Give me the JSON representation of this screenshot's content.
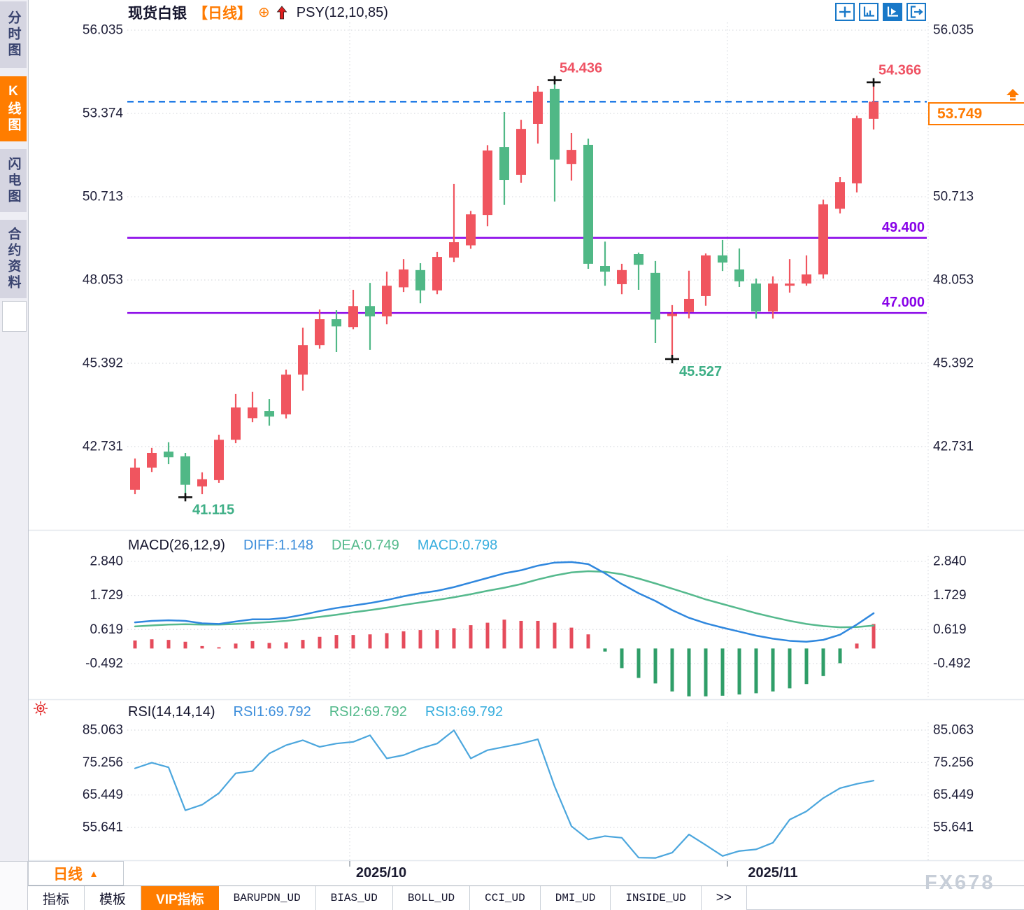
{
  "header": {
    "symbol": "现货白银",
    "timeframe": "【日线】",
    "plus_icon": "⊕",
    "indicator": "PSY(12,10,85)"
  },
  "sidebar": {
    "tabs": [
      {
        "label": "分时图",
        "active": false
      },
      {
        "label": "K线图",
        "active": true
      },
      {
        "label": "闪电图",
        "active": false
      },
      {
        "label": "合约资料",
        "active": false
      }
    ]
  },
  "colors": {
    "accent_orange": "#ff7d00",
    "candle_up": "#f0555f",
    "candle_down": "#50b886",
    "level_purple": "#8802e8",
    "dashed_blue": "#1474e4",
    "macd_diff": "#2f87de",
    "macd_dea": "#55b98d",
    "hist_up": "#e54b5b",
    "hist_down": "#2f9e68",
    "rsi_line": "#4ba6dd",
    "annotation_red": "#ef5263",
    "annotation_green": "#3eaf86",
    "axis_text": "#20203a",
    "grid": "#d8dadf",
    "marker_black": "#111111"
  },
  "price_badge": {
    "value": "53.749"
  },
  "chart_data": {
    "type": "candlestick",
    "instrument": "现货白银",
    "interval": "日线",
    "x_labels": [
      "2025/10",
      "2025/11"
    ],
    "y_ticks_main": [
      "56.035",
      "53.374",
      "50.713",
      "48.053",
      "45.392",
      "42.731"
    ],
    "last_price": 53.749,
    "candles_ohlc": [
      [
        41.35,
        42.35,
        41.21,
        42.06
      ],
      [
        42.06,
        42.69,
        41.92,
        42.53
      ],
      [
        42.57,
        42.87,
        42.17,
        42.39
      ],
      [
        42.42,
        42.53,
        41.115,
        41.51
      ],
      [
        41.46,
        41.91,
        41.21,
        41.69
      ],
      [
        41.66,
        43.11,
        41.57,
        42.95
      ],
      [
        42.95,
        44.41,
        42.84,
        43.98
      ],
      [
        43.64,
        44.48,
        43.51,
        43.98
      ],
      [
        43.87,
        44.25,
        43.4,
        43.69
      ],
      [
        43.76,
        45.19,
        43.63,
        45.03
      ],
      [
        45.03,
        46.53,
        44.52,
        45.97
      ],
      [
        45.97,
        47.11,
        45.86,
        46.8
      ],
      [
        46.8,
        47.09,
        45.75,
        46.57
      ],
      [
        46.55,
        47.74,
        46.48,
        47.22
      ],
      [
        47.22,
        47.96,
        45.82,
        46.89
      ],
      [
        46.89,
        48.32,
        46.64,
        47.87
      ],
      [
        47.82,
        48.72,
        47.67,
        48.39
      ],
      [
        48.37,
        48.59,
        47.31,
        47.72
      ],
      [
        47.72,
        48.95,
        47.6,
        48.79
      ],
      [
        48.77,
        51.12,
        48.63,
        49.26
      ],
      [
        49.16,
        50.26,
        49.05,
        50.15
      ],
      [
        50.13,
        52.36,
        49.77,
        52.19
      ],
      [
        52.3,
        53.42,
        50.45,
        51.25
      ],
      [
        51.41,
        53.17,
        51.16,
        52.88
      ],
      [
        53.04,
        54.25,
        52.41,
        54.07
      ],
      [
        54.16,
        54.436,
        50.56,
        51.9
      ],
      [
        51.76,
        52.75,
        51.23,
        52.21
      ],
      [
        52.37,
        52.57,
        48.41,
        48.57
      ],
      [
        48.5,
        49.28,
        47.87,
        48.32
      ],
      [
        47.92,
        48.57,
        47.6,
        48.37
      ],
      [
        48.88,
        48.93,
        47.74,
        48.54
      ],
      [
        48.28,
        48.66,
        46.04,
        46.79
      ],
      [
        46.9,
        47.25,
        45.527,
        46.98
      ],
      [
        47.03,
        48.35,
        46.83,
        47.45
      ],
      [
        47.54,
        48.9,
        47.23,
        48.84
      ],
      [
        48.84,
        49.33,
        48.34,
        48.61
      ],
      [
        48.39,
        49.06,
        47.83,
        48.01
      ],
      [
        47.94,
        48.1,
        46.82,
        47.05
      ],
      [
        47.05,
        48.17,
        46.82,
        47.94
      ],
      [
        47.87,
        48.72,
        47.65,
        47.94
      ],
      [
        47.94,
        48.84,
        47.87,
        48.23
      ],
      [
        48.23,
        50.62,
        48.1,
        50.47
      ],
      [
        50.33,
        51.34,
        50.18,
        51.18
      ],
      [
        51.14,
        53.3,
        50.85,
        53.22
      ],
      [
        53.2,
        54.366,
        52.86,
        53.749
      ]
    ],
    "annotations": {
      "peak": {
        "text": "54.436",
        "candle": 25,
        "side": "high"
      },
      "recent_high": {
        "text": "54.366",
        "candle": 44,
        "side": "high"
      },
      "bottom": {
        "text": "41.115",
        "candle": 3,
        "side": "low"
      },
      "swing_low": {
        "text": "45.527",
        "candle": 32,
        "side": "low"
      },
      "levels": [
        {
          "text": "49.400",
          "value": 49.4
        },
        {
          "text": "47.000",
          "value": 47.0
        }
      ]
    },
    "macd": {
      "label": "MACD(26,12,9)",
      "diff_label": "DIFF:1.148",
      "dea_label": "DEA:0.749",
      "macd_label": "MACD:0.798",
      "y_ticks": [
        "2.840",
        "1.729",
        "0.619",
        "-0.492"
      ],
      "diff_series": [
        0.85,
        0.9,
        0.92,
        0.9,
        0.82,
        0.8,
        0.88,
        0.95,
        0.95,
        1.0,
        1.1,
        1.22,
        1.32,
        1.4,
        1.48,
        1.58,
        1.7,
        1.8,
        1.88,
        2.0,
        2.15,
        2.3,
        2.45,
        2.55,
        2.7,
        2.8,
        2.82,
        2.75,
        2.45,
        2.1,
        1.8,
        1.55,
        1.25,
        1.0,
        0.82,
        0.68,
        0.55,
        0.42,
        0.32,
        0.25,
        0.22,
        0.28,
        0.45,
        0.78,
        1.148
      ],
      "dea_series": [
        0.72,
        0.75,
        0.78,
        0.79,
        0.78,
        0.78,
        0.8,
        0.83,
        0.86,
        0.9,
        0.96,
        1.03,
        1.1,
        1.18,
        1.25,
        1.33,
        1.42,
        1.5,
        1.58,
        1.67,
        1.77,
        1.88,
        1.98,
        2.1,
        2.25,
        2.38,
        2.48,
        2.52,
        2.5,
        2.42,
        2.28,
        2.12,
        1.95,
        1.78,
        1.6,
        1.45,
        1.3,
        1.15,
        1.02,
        0.9,
        0.8,
        0.73,
        0.69,
        0.7,
        0.749
      ],
      "hist_series": [
        0.26,
        0.3,
        0.28,
        0.22,
        0.08,
        0.04,
        0.16,
        0.24,
        0.18,
        0.2,
        0.28,
        0.38,
        0.44,
        0.44,
        0.46,
        0.5,
        0.56,
        0.6,
        0.6,
        0.66,
        0.76,
        0.84,
        0.94,
        0.9,
        0.9,
        0.84,
        0.68,
        0.46,
        -0.1,
        -0.64,
        -0.96,
        -1.14,
        -1.4,
        -1.56,
        -1.56,
        -1.54,
        -1.5,
        -1.46,
        -1.4,
        -1.3,
        -1.16,
        -0.9,
        -0.48,
        0.16,
        0.798
      ]
    },
    "rsi": {
      "label": "RSI(14,14,14)",
      "rsi1_label": "RSI1:69.792",
      "rsi2_label": "RSI2:69.792",
      "rsi3_label": "RSI3:69.792",
      "y_ticks": [
        "85.063",
        "75.256",
        "65.449",
        "55.641"
      ],
      "series": [
        73.5,
        75.2,
        73.8,
        60.8,
        62.5,
        66.0,
        72.0,
        72.7,
        78.0,
        80.5,
        82.0,
        80.0,
        81.0,
        81.5,
        83.5,
        76.5,
        77.5,
        79.5,
        81.0,
        85.0,
        76.5,
        79.0,
        80.0,
        81.0,
        82.3,
        68.0,
        56.0,
        52.0,
        53.0,
        52.5,
        46.5,
        46.4,
        48.0,
        53.5,
        50.3,
        47.0,
        48.5,
        49.0,
        51.0,
        58.0,
        60.5,
        64.5,
        67.5,
        68.8,
        69.792
      ]
    }
  },
  "bottom": {
    "timeframe": "日线",
    "timeframe_caret": "▲",
    "tabs": [
      {
        "label": "指标",
        "active": false
      },
      {
        "label": "模板",
        "active": false
      },
      {
        "label": "VIP指标",
        "active": true
      },
      {
        "label": "BARUPDN_UD",
        "active": false
      },
      {
        "label": "BIAS_UD",
        "active": false
      },
      {
        "label": "BOLL_UD",
        "active": false
      },
      {
        "label": "CCI_UD",
        "active": false
      },
      {
        "label": "DMI_UD",
        "active": false
      },
      {
        "label": "INSIDE_UD",
        "active": false
      },
      {
        "label": ">>",
        "active": false
      }
    ]
  },
  "watermark": "FX678"
}
